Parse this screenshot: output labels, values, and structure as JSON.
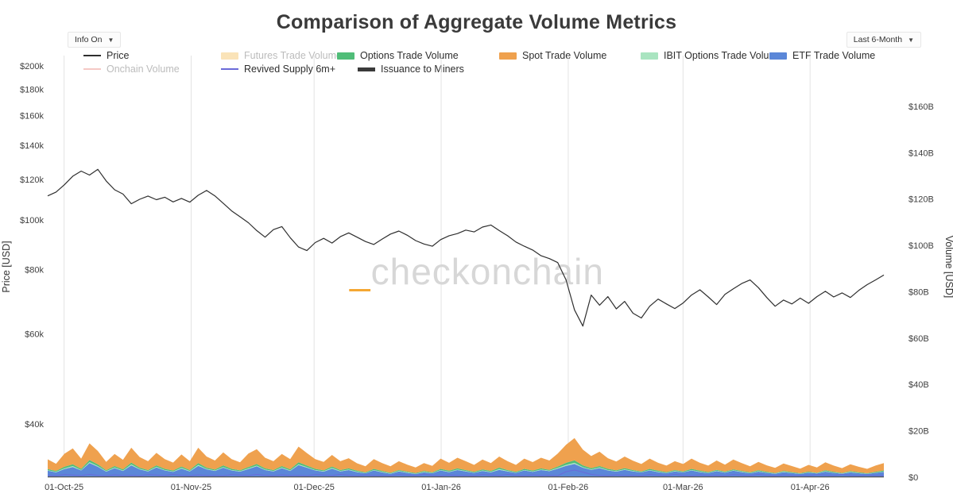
{
  "header": {
    "title": "Comparison of Aggregate Volume Metrics",
    "info_toggle": {
      "label": "Info On",
      "arrow": "▼"
    },
    "range_select": {
      "value": "Last 6-Month",
      "arrow": "▼"
    }
  },
  "watermark": {
    "prefix": "_",
    "text": "checkonchain",
    "prefix_color": "#f5a733"
  },
  "legend": {
    "rows": [
      [
        {
          "label": "Price",
          "swatch": "line",
          "color": "#2f2f2f",
          "enabled": true
        },
        {
          "label": "Futures Trade Volume",
          "swatch": "bar",
          "color": "#f8d9a0",
          "enabled": false
        },
        {
          "label": "Options Trade Volume",
          "swatch": "bar",
          "color": "#50bd78",
          "enabled": true
        },
        {
          "label": "Spot Trade Volume",
          "swatch": "bar",
          "color": "#efa14e",
          "enabled": true
        },
        {
          "label": "IBIT Options Trade Volume",
          "swatch": "bar",
          "color": "#a9e4c0",
          "enabled": true
        },
        {
          "label": "ETF Trade Volume",
          "swatch": "bar",
          "color": "#5b87d8",
          "enabled": true
        }
      ],
      [
        {
          "label": "Onchain Volume",
          "swatch": "line",
          "color": "#f2b5b1",
          "enabled": false
        },
        {
          "label": "Revived Supply 6m+",
          "swatch": "line",
          "color": "#6a6ad9",
          "enabled": true
        },
        {
          "label": "Issuance to Miners",
          "swatch": "thick-line",
          "color": "#3a3a3a",
          "enabled": true
        }
      ]
    ]
  },
  "chart_data": {
    "type": "area",
    "title": "Comparison of Aggregate Volume Metrics",
    "grid": "vertical-only",
    "legend_position": "top",
    "price_axis": {
      "label": "Price [USD]",
      "scale": "log",
      "unit": "USD thousands",
      "tick_range": [
        40000,
        200000
      ],
      "ticks": [
        {
          "label": "$200k",
          "value": 200
        },
        {
          "label": "$180k",
          "value": 180
        },
        {
          "label": "$160k",
          "value": 160
        },
        {
          "label": "$140k",
          "value": 140
        },
        {
          "label": "$120k",
          "value": 120
        },
        {
          "label": "$100k",
          "value": 100
        },
        {
          "label": "$80k",
          "value": 80
        },
        {
          "label": "$60k",
          "value": 60
        },
        {
          "label": "$40k",
          "value": 40
        }
      ]
    },
    "volume_axis": {
      "label": "Volume [USD]",
      "scale": "linear",
      "unit": "USD billions",
      "tick_range": [
        0,
        160
      ],
      "ticks": [
        {
          "label": "$160B",
          "value": 160
        },
        {
          "label": "$140B",
          "value": 140
        },
        {
          "label": "$120B",
          "value": 120
        },
        {
          "label": "$100B",
          "value": 100
        },
        {
          "label": "$80B",
          "value": 80
        },
        {
          "label": "$60B",
          "value": 60
        },
        {
          "label": "$40B",
          "value": 40
        },
        {
          "label": "$20B",
          "value": 20
        },
        {
          "label": "$0",
          "value": 0
        }
      ]
    },
    "x_axis": {
      "days_total": 204,
      "sample_step_days": 2.04,
      "ticks": [
        {
          "label": "01-Oct-25",
          "day": 4
        },
        {
          "label": "01-Nov-25",
          "day": 35
        },
        {
          "label": "01-Dec-25",
          "day": 65
        },
        {
          "label": "01-Jan-26",
          "day": 96
        },
        {
          "label": "01-Feb-26",
          "day": 127
        },
        {
          "label": "01-Mar-26",
          "day": 155
        },
        {
          "label": "01-Apr-26",
          "day": 186
        }
      ]
    },
    "series": [
      {
        "key": "issuance",
        "name": "Issuance to Miners",
        "type": "stacked-area",
        "axis": "volume",
        "color": "#3a3a3a",
        "values": [
          0.3,
          0.3,
          0.3,
          0.3,
          0.3,
          0.3,
          0.3,
          0.3,
          0.3,
          0.3,
          0.3,
          0.3,
          0.3,
          0.3,
          0.3,
          0.3,
          0.3,
          0.3,
          0.3,
          0.3,
          0.3,
          0.3,
          0.3,
          0.3,
          0.3,
          0.3,
          0.3,
          0.3,
          0.3,
          0.3,
          0.3,
          0.3,
          0.3,
          0.3,
          0.3,
          0.3,
          0.3,
          0.3,
          0.3,
          0.3,
          0.3,
          0.3,
          0.3,
          0.3,
          0.3,
          0.3,
          0.3,
          0.3,
          0.3,
          0.3,
          0.3,
          0.3,
          0.3,
          0.3,
          0.3,
          0.3,
          0.3,
          0.3,
          0.3,
          0.3,
          0.3,
          0.3,
          0.3,
          0.3,
          0.3,
          0.3,
          0.3,
          0.3,
          0.3,
          0.3,
          0.3,
          0.3,
          0.3,
          0.3,
          0.3,
          0.3,
          0.3,
          0.3,
          0.3,
          0.3,
          0.3,
          0.3,
          0.3,
          0.3,
          0.3,
          0.3,
          0.3,
          0.3,
          0.3,
          0.3,
          0.3,
          0.3,
          0.3,
          0.3,
          0.3,
          0.3,
          0.3,
          0.3,
          0.3,
          0.3,
          0.3
        ]
      },
      {
        "key": "etf",
        "name": "ETF Trade Volume",
        "type": "stacked-area",
        "axis": "volume",
        "color": "#5b87d8",
        "values": [
          2.5,
          1.8,
          3.2,
          4.1,
          2.6,
          5.8,
          4.2,
          2.1,
          3.6,
          2.4,
          4.8,
          3.1,
          2.2,
          3.9,
          2.6,
          2.0,
          3.4,
          2.2,
          4.6,
          3.1,
          2.4,
          3.8,
          2.6,
          2.1,
          3.2,
          4.4,
          2.8,
          2.2,
          3.6,
          2.4,
          4.9,
          3.8,
          2.6,
          2.1,
          3.4,
          2.2,
          2.8,
          1.9,
          1.4,
          2.6,
          1.8,
          1.2,
          2.2,
          1.6,
          1.1,
          1.8,
          1.4,
          2.6,
          1.9,
          2.8,
          2.2,
          1.6,
          2.4,
          1.8,
          2.9,
          2.2,
          1.6,
          2.6,
          2.0,
          2.8,
          2.3,
          3.4,
          4.6,
          5.4,
          3.8,
          2.9,
          3.6,
          2.6,
          2.1,
          2.9,
          2.2,
          1.8,
          2.6,
          1.9,
          1.5,
          2.2,
          1.8,
          2.6,
          1.9,
          1.5,
          2.3,
          1.7,
          2.5,
          1.9,
          1.4,
          2.1,
          1.6,
          1.2,
          1.9,
          1.5,
          1.1,
          1.7,
          1.3,
          2.1,
          1.6,
          1.2,
          1.8,
          1.4,
          1.1,
          1.6,
          2.0
        ]
      },
      {
        "key": "ibit_options",
        "name": "IBIT Options Trade Volume",
        "type": "stacked-area",
        "axis": "volume",
        "color": "#a9e4c0",
        "values": [
          0.2,
          0.2,
          0.3,
          0.4,
          0.2,
          0.4,
          0.3,
          0.2,
          0.3,
          0.2,
          0.4,
          0.2,
          0.2,
          0.3,
          0.2,
          0.2,
          0.3,
          0.2,
          0.4,
          0.2,
          0.2,
          0.3,
          0.2,
          0.2,
          0.3,
          0.3,
          0.2,
          0.2,
          0.3,
          0.2,
          0.4,
          0.3,
          0.2,
          0.2,
          0.3,
          0.2,
          0.2,
          0.2,
          0.1,
          0.2,
          0.2,
          0.1,
          0.2,
          0.2,
          0.1,
          0.2,
          0.1,
          0.2,
          0.2,
          0.2,
          0.2,
          0.1,
          0.2,
          0.2,
          0.3,
          0.2,
          0.1,
          0.2,
          0.2,
          0.2,
          0.2,
          0.3,
          0.4,
          0.5,
          0.3,
          0.2,
          0.3,
          0.2,
          0.2,
          0.2,
          0.2,
          0.1,
          0.2,
          0.2,
          0.1,
          0.2,
          0.1,
          0.2,
          0.2,
          0.1,
          0.2,
          0.1,
          0.2,
          0.2,
          0.1,
          0.2,
          0.1,
          0.1,
          0.2,
          0.1,
          0.1,
          0.1,
          0.1,
          0.2,
          0.1,
          0.1,
          0.2,
          0.1,
          0.1,
          0.1,
          0.2
        ]
      },
      {
        "key": "options",
        "name": "Options Trade Volume",
        "type": "stacked-area",
        "axis": "volume",
        "color": "#50bd78",
        "values": [
          0.5,
          0.4,
          0.7,
          0.8,
          0.5,
          0.9,
          0.7,
          0.4,
          0.6,
          0.5,
          0.8,
          0.5,
          0.4,
          0.6,
          0.5,
          0.4,
          0.6,
          0.4,
          0.8,
          0.5,
          0.4,
          0.7,
          0.5,
          0.4,
          0.6,
          0.7,
          0.5,
          0.4,
          0.6,
          0.5,
          0.8,
          0.6,
          0.5,
          0.4,
          0.6,
          0.4,
          0.5,
          0.4,
          0.3,
          0.5,
          0.4,
          0.3,
          0.4,
          0.3,
          0.3,
          0.4,
          0.3,
          0.5,
          0.4,
          0.5,
          0.4,
          0.3,
          0.5,
          0.4,
          0.6,
          0.4,
          0.3,
          0.5,
          0.4,
          0.5,
          0.4,
          0.6,
          0.9,
          1.1,
          0.7,
          0.5,
          0.6,
          0.5,
          0.4,
          0.5,
          0.4,
          0.3,
          0.5,
          0.4,
          0.3,
          0.4,
          0.3,
          0.5,
          0.4,
          0.3,
          0.4,
          0.3,
          0.4,
          0.3,
          0.3,
          0.4,
          0.3,
          0.2,
          0.3,
          0.3,
          0.2,
          0.3,
          0.2,
          0.4,
          0.3,
          0.2,
          0.3,
          0.3,
          0.2,
          0.3,
          0.4
        ]
      },
      {
        "key": "spot",
        "name": "Spot Trade Volume",
        "type": "stacked-area",
        "axis": "volume",
        "color": "#efa14e",
        "values": [
          4.2,
          3.1,
          5.6,
          6.8,
          4.4,
          7.2,
          5.8,
          3.6,
          5.2,
          4.1,
          6.4,
          4.6,
          3.8,
          5.4,
          4.2,
          3.4,
          5.2,
          3.8,
          6.6,
          4.8,
          3.9,
          5.6,
          4.2,
          3.4,
          5.8,
          6.4,
          4.6,
          3.8,
          5.2,
          4.4,
          6.8,
          5.4,
          4.2,
          3.6,
          5.0,
          3.8,
          4.4,
          3.2,
          2.6,
          4.2,
          3.4,
          2.8,
          3.8,
          3.0,
          2.4,
          3.4,
          2.8,
          4.4,
          3.4,
          4.6,
          3.8,
          3.0,
          4.2,
          3.4,
          4.8,
          3.8,
          3.0,
          4.4,
          3.6,
          4.6,
          4.0,
          5.6,
          7.8,
          9.6,
          6.8,
          5.2,
          6.2,
          4.6,
          3.8,
          5.0,
          4.0,
          3.2,
          4.4,
          3.4,
          2.8,
          3.8,
          3.2,
          4.4,
          3.4,
          2.8,
          4.0,
          3.0,
          4.2,
          3.4,
          2.6,
          3.6,
          2.8,
          2.2,
          3.2,
          2.6,
          2.0,
          2.9,
          2.3,
          3.4,
          2.7,
          2.1,
          3.0,
          2.4,
          1.9,
          2.7,
          3.2
        ]
      },
      {
        "key": "revived",
        "name": "Revived Supply 6m+",
        "type": "line",
        "axis": "volume",
        "color": "#6a6ad9",
        "width": 1,
        "values": [
          0.8,
          0.6,
          1.1,
          0.9,
          0.7,
          1.2,
          0.8,
          0.6,
          1.0,
          0.7,
          0.8,
          0.6,
          1.1,
          0.9,
          0.7,
          1.2,
          0.8,
          0.6,
          1.0,
          0.7,
          0.8,
          0.6,
          1.1,
          0.9,
          0.7,
          1.2,
          0.8,
          0.6,
          1.0,
          0.7,
          0.8,
          0.6,
          1.1,
          0.9,
          0.7,
          1.2,
          0.8,
          0.6,
          1.0,
          0.7,
          0.8,
          0.6,
          1.1,
          0.9,
          0.7,
          1.2,
          0.8,
          0.6,
          1.0,
          0.7,
          0.8,
          0.6,
          1.1,
          0.9,
          0.7,
          1.2,
          0.8,
          0.6,
          1.0,
          0.7,
          0.8,
          0.6,
          2.4,
          3.1,
          2.2,
          1.2,
          0.8,
          0.6,
          1.0,
          0.7,
          0.8,
          0.6,
          1.1,
          0.9,
          0.7,
          1.2,
          0.8,
          0.6,
          1.0,
          0.7,
          0.8,
          0.6,
          1.1,
          0.9,
          0.7,
          1.2,
          0.8,
          0.6,
          1.0,
          0.7,
          0.8,
          0.6,
          1.1,
          0.9,
          0.7,
          1.2,
          0.8,
          0.6,
          1.0,
          0.7,
          0.8
        ]
      },
      {
        "key": "price",
        "name": "Price",
        "type": "line",
        "axis": "price",
        "color": "#2f2f2f",
        "width": 1.2,
        "values": [
          111.5,
          113.4,
          117.2,
          121.8,
          124.6,
          122.4,
          125.6,
          119.2,
          114.6,
          112.4,
          107.6,
          109.8,
          111.4,
          109.6,
          110.8,
          108.5,
          110.2,
          108.4,
          111.8,
          114.2,
          111.5,
          107.8,
          104.2,
          101.5,
          98.8,
          95.4,
          92.6,
          95.8,
          97.1,
          92.4,
          88.6,
          87.2,
          90.4,
          92.1,
          90.2,
          92.8,
          94.4,
          92.6,
          90.8,
          89.6,
          91.8,
          93.9,
          95.2,
          93.4,
          91.2,
          89.8,
          88.9,
          91.6,
          93.2,
          94.1,
          95.6,
          94.8,
          96.9,
          97.8,
          95.4,
          93.2,
          90.6,
          88.9,
          87.4,
          85.2,
          84.1,
          82.6,
          76.4,
          66.8,
          62.1,
          71.4,
          68.2,
          70.9,
          67.1,
          69.4,
          65.8,
          64.4,
          67.9,
          70.1,
          68.6,
          67.2,
          68.9,
          71.4,
          73.1,
          70.8,
          68.4,
          71.6,
          73.4,
          75.2,
          76.4,
          73.8,
          70.6,
          67.9,
          69.8,
          68.6,
          70.4,
          68.8,
          70.9,
          72.6,
          70.8,
          72.1,
          70.6,
          72.9,
          74.8,
          76.4,
          78.1
        ]
      }
    ]
  }
}
